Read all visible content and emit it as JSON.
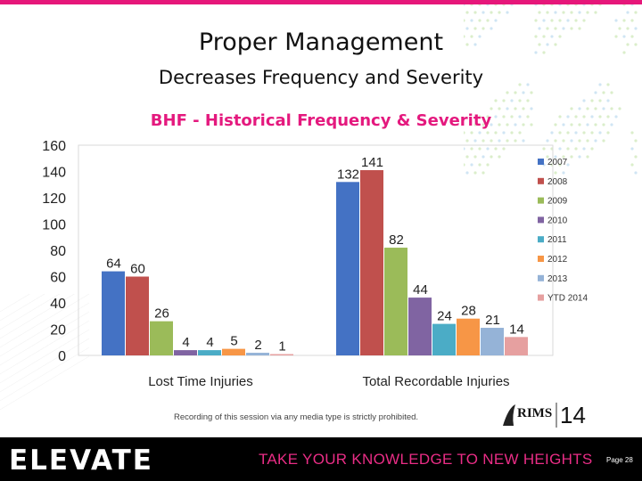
{
  "slide": {
    "title": "Proper Management",
    "subtitle": "Decreases Frequency and Severity",
    "notice": "Recording of this session via any media type is strictly prohibited.",
    "rims_logo": {
      "text": "RIMS",
      "year": "14"
    },
    "footer": {
      "logo": "ELEVATE",
      "tagline": "TAKE YOUR KNOWLEDGE TO NEW HEIGHTS",
      "page": "Page 28"
    }
  },
  "chart_data": {
    "type": "bar",
    "title": "BHF - Historical Frequency & Severity",
    "categories": [
      "Lost Time Injuries",
      "Total Recordable Injuries"
    ],
    "series": [
      {
        "name": "2007",
        "color": "#4472c4",
        "values": [
          64,
          132
        ]
      },
      {
        "name": "2008",
        "color": "#c0504d",
        "values": [
          60,
          141
        ]
      },
      {
        "name": "2009",
        "color": "#9bbb59",
        "values": [
          26,
          82
        ]
      },
      {
        "name": "2010",
        "color": "#8064a2",
        "values": [
          4,
          44
        ]
      },
      {
        "name": "2011",
        "color": "#4bacc6",
        "values": [
          4,
          24
        ]
      },
      {
        "name": "2012",
        "color": "#f79646",
        "values": [
          5,
          28
        ]
      },
      {
        "name": "2013",
        "color": "#95b3d7",
        "values": [
          2,
          21
        ]
      },
      {
        "name": "YTD 2014",
        "color": "#e6a0a0",
        "values": [
          1,
          14
        ]
      }
    ],
    "ylim": [
      0,
      160
    ],
    "yticks": [
      0,
      20,
      40,
      60,
      80,
      100,
      120,
      140,
      160
    ],
    "grid": false,
    "legend": "right"
  }
}
